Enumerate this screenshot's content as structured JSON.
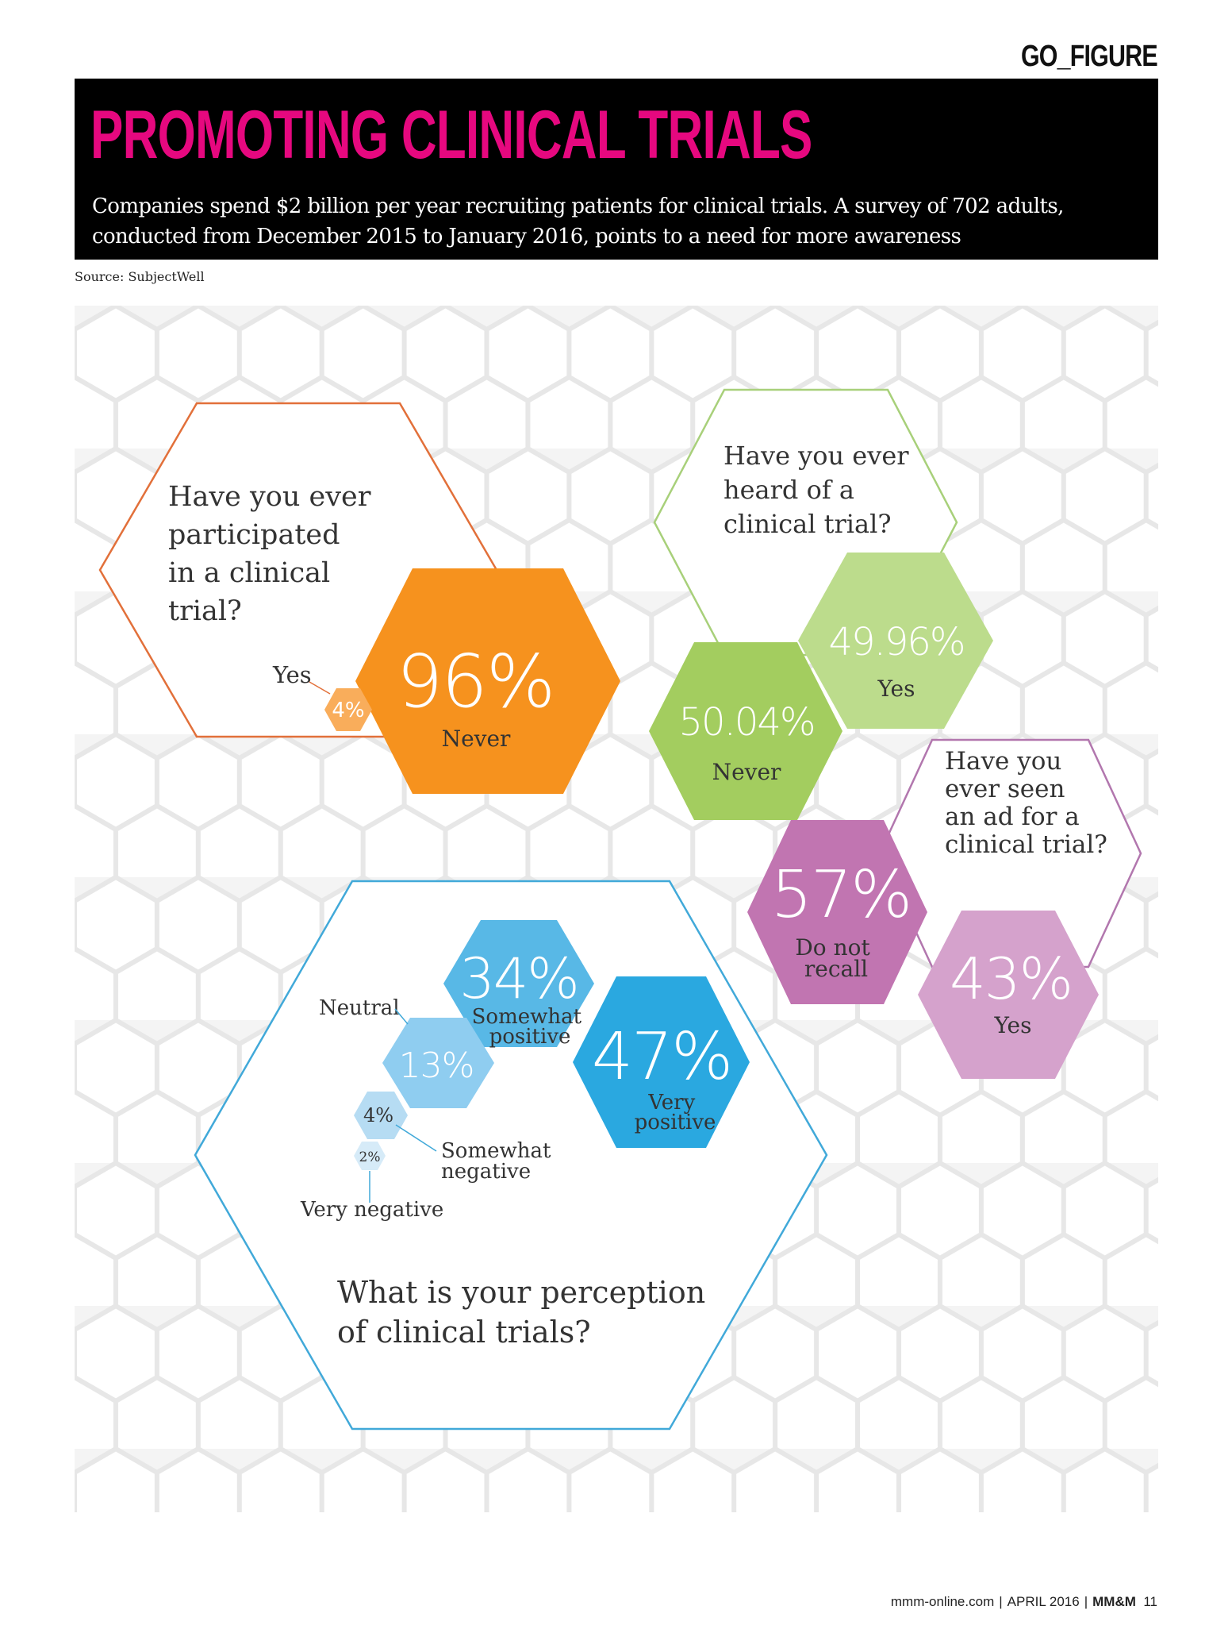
{
  "section_label": "GO_FIGURE",
  "title": "PROMOTING CLINICAL TRIALS",
  "subtitle": "Companies spend $2 billion per year recruiting patients for clinical trials. A survey of 702 adults, conducted from December 2015 to January 2016, points to a need for more awareness",
  "source": "Source: SubjectWell",
  "colors": {
    "title_pink": "#e6087f",
    "participated": "#f6921e",
    "participated_light": "#f9ad5b",
    "participated_outline": "#e2703a",
    "heard": "#a3cd5f",
    "heard_light": "#bcdc8c",
    "heard_outline": "#a8d07a",
    "ad": "#c175b1",
    "ad_light": "#d5a2cc",
    "ad_outline": "#b277ae",
    "perception_dark": "#2aa8e0",
    "perception_mid": "#58b8e6",
    "perception_light": "#8fcdf0",
    "perception_lighter": "#b6dcf3",
    "perception_lightest": "#d6ebf8",
    "perception_outline": "#41a9d9"
  },
  "chart_data": [
    {
      "type": "pie",
      "question": "Have you ever participated in a clinical trial?",
      "categories": [
        "Never",
        "Yes"
      ],
      "values": [
        96,
        4
      ],
      "value_labels": [
        "96%",
        "4%"
      ]
    },
    {
      "type": "pie",
      "question": "Have you ever heard of a clinical trial?",
      "categories": [
        "Never",
        "Yes"
      ],
      "values": [
        50.04,
        49.96
      ],
      "value_labels": [
        "50.04%",
        "49.96%"
      ]
    },
    {
      "type": "pie",
      "question": "Have you ever seen an ad for a clinical trial?",
      "categories": [
        "Do not recall",
        "Yes"
      ],
      "values": [
        57,
        43
      ],
      "value_labels": [
        "57%",
        "43%"
      ]
    },
    {
      "type": "pie",
      "question": "What is your perception of clinical trials?",
      "categories": [
        "Very positive",
        "Somewhat positive",
        "Neutral",
        "Somewhat negative",
        "Very negative"
      ],
      "values": [
        47,
        34,
        13,
        4,
        2
      ],
      "value_labels": [
        "47%",
        "34%",
        "13%",
        "4%",
        "2%"
      ]
    }
  ],
  "question_lines": {
    "participated": [
      "Have you ever",
      "participated",
      "in a clinical",
      "trial?"
    ],
    "heard": [
      "Have you ever",
      "heard of a",
      "clinical trial?"
    ],
    "ad": [
      "Have you",
      "ever seen",
      "an ad for a",
      "clinical trial?"
    ],
    "perception": [
      "What is your perception",
      "of clinical trials?"
    ]
  },
  "category_lines": {
    "do_not_recall": [
      "Do not",
      "recall"
    ],
    "somewhat_positive": [
      "Somewhat",
      "positive"
    ],
    "very_positive": [
      "Very",
      "positive"
    ],
    "somewhat_negative": [
      "Somewhat",
      "negative"
    ]
  },
  "footer": {
    "site": "mmm-online.com",
    "issue": "APRIL 2016",
    "brand": "MM&M",
    "page": "11"
  }
}
